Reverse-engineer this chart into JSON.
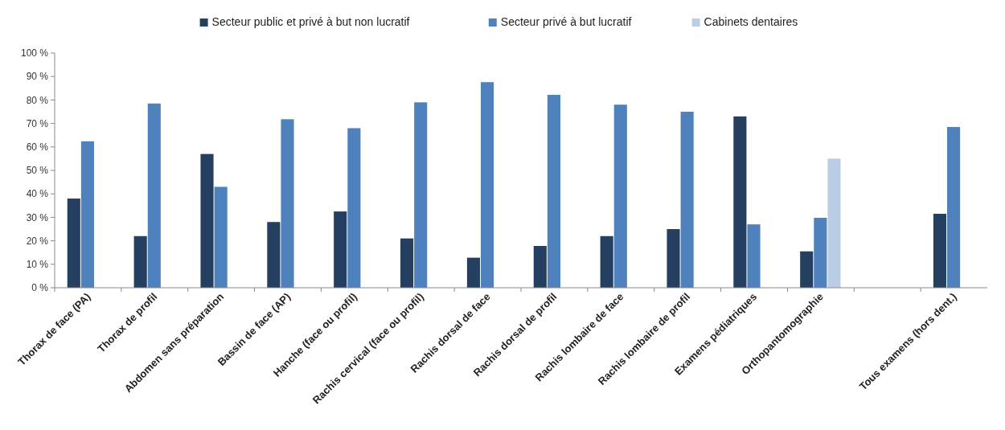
{
  "chart_data": {
    "type": "bar",
    "categories": [
      "Thorax de face (PA)",
      "Thorax de profil",
      "Abdomen sans préparation",
      "Bassin de face (AP)",
      "Hanche (face ou profil)",
      "Rachis cervical (face ou profil)",
      "Rachis dorsal de face",
      "Rachis dorsal de profil",
      "Rachis lombaire de face",
      "Rachis lombaire de profil",
      "Examens pédiatriques",
      "Orthopantomographie",
      null,
      "Tous examens (hors dent.)"
    ],
    "series": [
      {
        "name": "Secteur public et privé à but non lucratif",
        "color": "#243f60",
        "values": [
          38,
          22,
          57,
          28,
          32.5,
          21,
          12.8,
          17.8,
          22,
          25,
          73,
          15.5,
          null,
          31.5
        ]
      },
      {
        "name": "Secteur privé à but lucratif",
        "color": "#4f81bd",
        "values": [
          62.4,
          78.5,
          43,
          71.8,
          68,
          79,
          87.6,
          82.2,
          78,
          75,
          27,
          29.8,
          null,
          68.5
        ]
      },
      {
        "name": "Cabinets dentaires",
        "color": "#b9cde5",
        "values": [
          null,
          null,
          null,
          null,
          null,
          null,
          null,
          null,
          null,
          null,
          null,
          55,
          null,
          null
        ]
      }
    ],
    "ylim": [
      0,
      100
    ],
    "yticks": [
      {
        "value": 0,
        "label": "0 %"
      },
      {
        "value": 10,
        "label": "10 %"
      },
      {
        "value": 20,
        "label": "20 %"
      },
      {
        "value": 30,
        "label": "30 %"
      },
      {
        "value": 40,
        "label": "40 %"
      },
      {
        "value": 50,
        "label": "50 %"
      },
      {
        "value": 60,
        "label": "60 %"
      },
      {
        "value": 70,
        "label": "70 %"
      },
      {
        "value": 80,
        "label": "80 %"
      },
      {
        "value": 90,
        "label": "90 %"
      },
      {
        "value": 100,
        "label": "100 %"
      }
    ],
    "legend": "top"
  }
}
